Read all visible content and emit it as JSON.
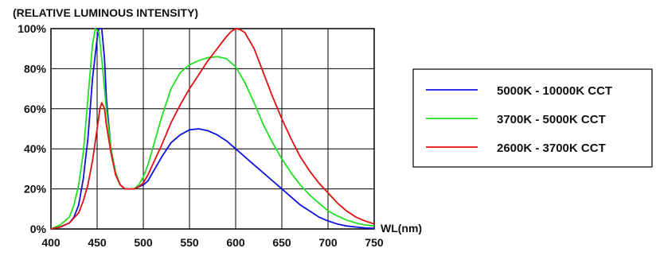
{
  "chart_data": {
    "type": "line",
    "title": "(RELATIVE LUMINOUS INTENSITY)",
    "xlabel": "WL(nm)",
    "ylabel": "",
    "xlim": [
      400,
      750
    ],
    "ylim": [
      0,
      100
    ],
    "x_ticks": [
      400,
      450,
      500,
      550,
      600,
      650,
      700,
      750
    ],
    "x_tick_labels": [
      "400",
      "450",
      "500",
      "550",
      "600",
      "650",
      "700",
      "750"
    ],
    "y_ticks": [
      0,
      20,
      40,
      60,
      80,
      100
    ],
    "y_tick_labels": [
      "0%",
      "20%",
      "40%",
      "60%",
      "80%",
      "100%"
    ],
    "grid": true,
    "legend_position": "right",
    "series": [
      {
        "name": "5000K - 10000K CCT",
        "color": "#1010e0",
        "x": [
          400,
          410,
          420,
          425,
          430,
          435,
          440,
          445,
          450,
          452,
          455,
          458,
          460,
          465,
          470,
          475,
          480,
          485,
          490,
          495,
          500,
          505,
          510,
          520,
          530,
          540,
          550,
          560,
          570,
          580,
          590,
          600,
          610,
          620,
          630,
          640,
          650,
          660,
          670,
          680,
          690,
          700,
          710,
          720,
          730,
          740,
          750
        ],
        "y": [
          0,
          1,
          3,
          6,
          12,
          25,
          45,
          75,
          95,
          100,
          100,
          85,
          65,
          40,
          28,
          22,
          20,
          20,
          20,
          21,
          22,
          24,
          28,
          36,
          43,
          47,
          49.5,
          50,
          49,
          47,
          44,
          40,
          36,
          32,
          28,
          24,
          20,
          16,
          12,
          9,
          6,
          4,
          2.5,
          1.5,
          1,
          0.5,
          0.3
        ]
      },
      {
        "name": "3700K - 5000K CCT",
        "color": "#22e022",
        "x": [
          400,
          410,
          420,
          425,
          430,
          435,
          440,
          445,
          448,
          452,
          455,
          460,
          465,
          470,
          475,
          480,
          485,
          490,
          495,
          500,
          505,
          510,
          520,
          530,
          540,
          550,
          560,
          570,
          580,
          590,
          600,
          610,
          620,
          630,
          640,
          650,
          660,
          670,
          680,
          690,
          700,
          710,
          720,
          730,
          740,
          750
        ],
        "y": [
          0,
          2,
          6,
          12,
          22,
          38,
          65,
          92,
          100,
          98,
          85,
          60,
          40,
          28,
          22,
          20,
          20,
          20,
          22,
          26,
          32,
          40,
          56,
          70,
          78,
          82,
          84,
          85.5,
          86,
          85,
          81,
          73,
          63,
          52,
          43,
          35,
          28,
          22,
          17,
          13,
          9,
          6.5,
          4.5,
          3,
          2,
          1.5
        ]
      },
      {
        "name": "2600K - 3700K CCT",
        "color": "#e01010",
        "x": [
          400,
          410,
          420,
          430,
          435,
          440,
          445,
          450,
          453,
          455,
          458,
          460,
          465,
          470,
          475,
          480,
          485,
          490,
          495,
          500,
          505,
          510,
          520,
          530,
          540,
          550,
          560,
          570,
          580,
          590,
          595,
          600,
          605,
          610,
          620,
          630,
          640,
          650,
          660,
          670,
          680,
          690,
          700,
          710,
          720,
          730,
          740,
          750
        ],
        "y": [
          0,
          1,
          3,
          8,
          14,
          22,
          34,
          50,
          60,
          63,
          60,
          52,
          38,
          27,
          22,
          20,
          20,
          20,
          21,
          23,
          27,
          32,
          42,
          53,
          62,
          70,
          77,
          84,
          90,
          96,
          98.5,
          100,
          99.5,
          98,
          90,
          78,
          66,
          55,
          45,
          36,
          29,
          23,
          18,
          13,
          9,
          6,
          4,
          2.5
        ]
      }
    ]
  }
}
